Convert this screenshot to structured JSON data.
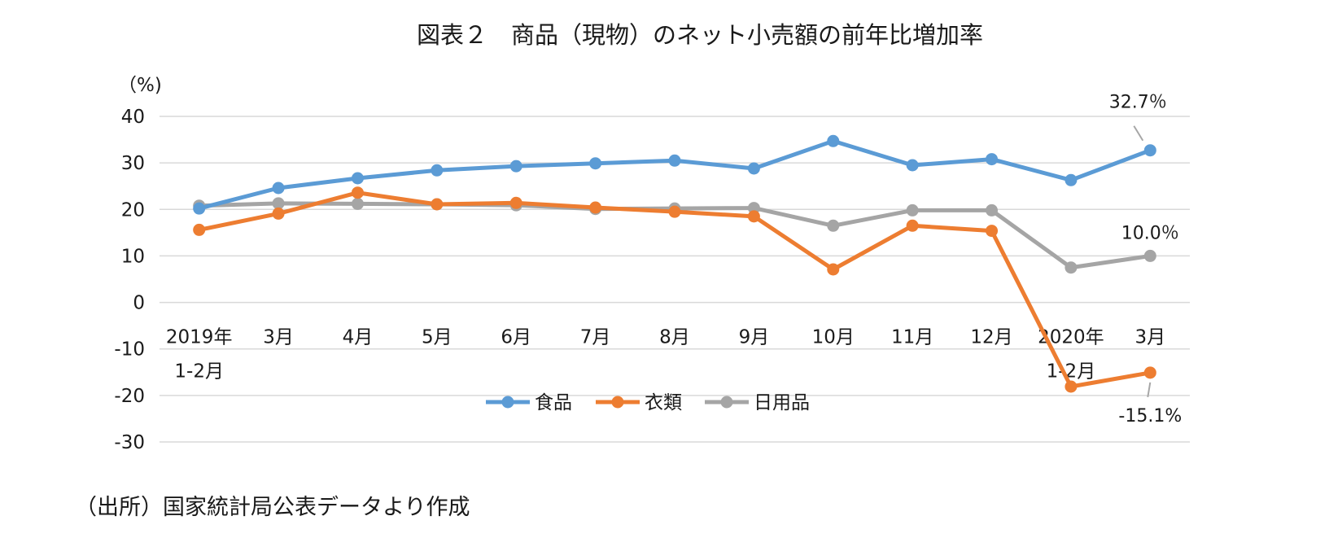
{
  "chart_data": {
    "type": "line",
    "title": "図表２　商品（現物）のネット小売額の前年比増加率",
    "ylabel": "（%)",
    "ylim": [
      -30,
      40
    ],
    "yticks": [
      40,
      30,
      20,
      10,
      0,
      -10,
      -20,
      -30
    ],
    "categories": [
      {
        "line1": "2019年",
        "line2": "1-2月"
      },
      {
        "line1": "3月",
        "line2": ""
      },
      {
        "line1": "4月",
        "line2": ""
      },
      {
        "line1": "5月",
        "line2": ""
      },
      {
        "line1": "6月",
        "line2": ""
      },
      {
        "line1": "7月",
        "line2": ""
      },
      {
        "line1": "8月",
        "line2": ""
      },
      {
        "line1": "9月",
        "line2": ""
      },
      {
        "line1": "10月",
        "line2": ""
      },
      {
        "line1": "11月",
        "line2": ""
      },
      {
        "line1": "12月",
        "line2": ""
      },
      {
        "line1": "2020年",
        "line2": "1-2月"
      },
      {
        "line1": "3月",
        "line2": ""
      }
    ],
    "series": [
      {
        "name": "食品",
        "color": "#5b9bd5",
        "values": [
          20.2,
          24.6,
          26.7,
          28.4,
          29.3,
          29.9,
          30.5,
          28.8,
          34.7,
          29.5,
          30.8,
          26.3,
          32.7
        ]
      },
      {
        "name": "衣類",
        "color": "#ed7d31",
        "values": [
          15.6,
          19.1,
          23.6,
          21.1,
          21.4,
          20.4,
          19.5,
          18.5,
          7.1,
          16.5,
          15.4,
          -18.1,
          -15.1
        ]
      },
      {
        "name": "日用品",
        "color": "#a5a5a5",
        "values": [
          20.8,
          21.3,
          21.2,
          21.1,
          20.9,
          20.1,
          20.2,
          20.3,
          16.5,
          19.8,
          19.8,
          7.5,
          10.0
        ]
      }
    ],
    "annotations": [
      {
        "series": 0,
        "index": 12,
        "text": "32.7％"
      },
      {
        "series": 2,
        "index": 12,
        "text": "10.0％"
      },
      {
        "series": 1,
        "index": 12,
        "text": "-15.1%"
      }
    ],
    "legend_position": "bottom-center",
    "grid": true
  },
  "source_note": "（出所）国家統計局公表データより作成"
}
